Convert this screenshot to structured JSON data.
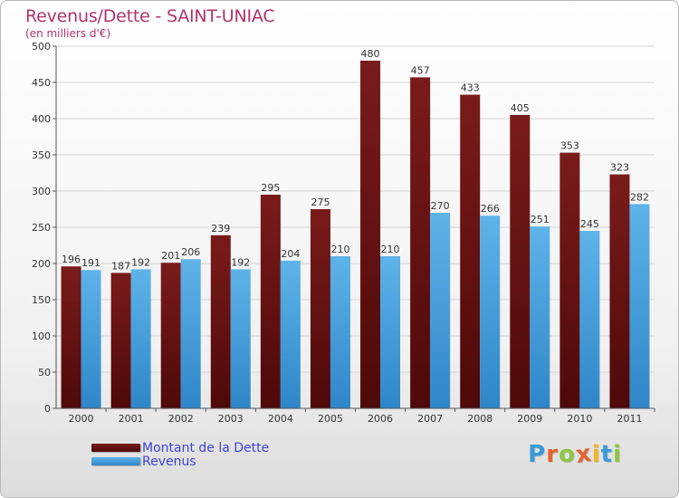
{
  "title": "Revenus/Dette - SAINT-UNIAC",
  "subtitle": "(en milliers d'€)",
  "brand": {
    "letters": [
      "P",
      "r",
      "o",
      "x",
      "i",
      "t",
      "i"
    ],
    "colors": [
      "#3a9ad9",
      "#e5632b",
      "#8bc53f",
      "#e5632b",
      "#f2b51d",
      "#3a9ad9",
      "#8bc53f"
    ]
  },
  "legend": {
    "debt_label": "Montant de la Dette",
    "revenue_label": "Revenus"
  },
  "colors": {
    "debt": "#7a1b1b",
    "debt_dark": "#4e0909",
    "revenue": "#5eb3e8",
    "revenue_dark": "#2f86c8"
  },
  "chart_data": {
    "type": "bar",
    "title": "Revenus/Dette - SAINT-UNIAC",
    "subtitle": "(en milliers d'€)",
    "categories": [
      "2000",
      "2001",
      "2002",
      "2003",
      "2004",
      "2005",
      "2006",
      "2007",
      "2008",
      "2009",
      "2010",
      "2011"
    ],
    "series": [
      {
        "name": "Montant de la Dette",
        "values": [
          196,
          187,
          201,
          239,
          295,
          275,
          480,
          457,
          433,
          405,
          353,
          323
        ]
      },
      {
        "name": "Revenus",
        "values": [
          191,
          192,
          206,
          192,
          204,
          210,
          210,
          270,
          266,
          251,
          245,
          282
        ]
      }
    ],
    "ylim": [
      0,
      500
    ],
    "yticks": [
      0,
      50,
      100,
      150,
      200,
      250,
      300,
      350,
      400,
      450,
      500
    ],
    "grid": true,
    "legend_position": "bottom-left"
  }
}
